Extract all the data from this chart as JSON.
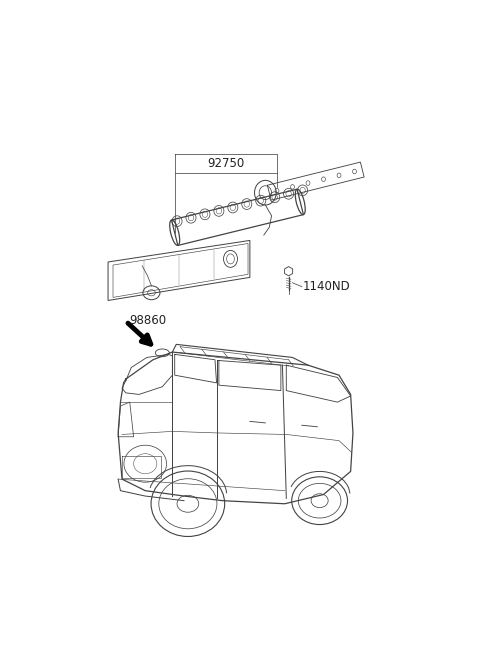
{
  "background_color": "#ffffff",
  "line_color": "#444444",
  "text_color": "#222222",
  "label_92750": "92750",
  "label_1140ND": "1140ND",
  "label_98860": "98860",
  "font_size_label": 8.5
}
